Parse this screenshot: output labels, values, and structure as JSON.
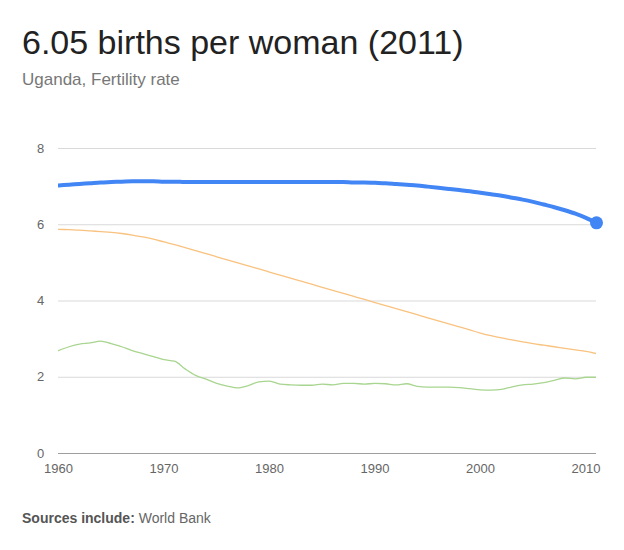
{
  "chart_data": {
    "type": "line",
    "title": "6.05 births per woman (2011)",
    "subtitle": "Uganda, Fertility rate",
    "caption_label": "Sources include:",
    "caption": "World Bank",
    "x": [
      1960,
      1961,
      1962,
      1963,
      1964,
      1965,
      1966,
      1967,
      1968,
      1969,
      1970,
      1971,
      1972,
      1973,
      1974,
      1975,
      1976,
      1977,
      1978,
      1979,
      1980,
      1981,
      1982,
      1983,
      1984,
      1985,
      1986,
      1987,
      1988,
      1989,
      1990,
      1991,
      1992,
      1993,
      1994,
      1995,
      1996,
      1997,
      1998,
      1999,
      2000,
      2001,
      2002,
      2003,
      2004,
      2005,
      2006,
      2007,
      2008,
      2009,
      2010,
      2011
    ],
    "series": [
      {
        "color": "#f9c27f",
        "values": [
          5.88,
          5.87,
          5.86,
          5.84,
          5.82,
          5.8,
          5.77,
          5.73,
          5.68,
          5.62,
          5.55,
          5.48,
          5.4,
          5.32,
          5.24,
          5.16,
          5.08,
          5.0,
          4.92,
          4.84,
          4.76,
          4.68,
          4.6,
          4.52,
          4.44,
          4.36,
          4.28,
          4.2,
          4.12,
          4.04,
          3.96,
          3.88,
          3.8,
          3.72,
          3.64,
          3.56,
          3.48,
          3.4,
          3.32,
          3.24,
          3.16,
          3.09,
          3.03,
          2.98,
          2.93,
          2.88,
          2.84,
          2.8,
          2.76,
          2.72,
          2.68,
          2.62
        ]
      },
      {
        "color": "#a8d58f",
        "values": [
          2.7,
          2.8,
          2.87,
          2.9,
          2.95,
          2.88,
          2.8,
          2.7,
          2.62,
          2.54,
          2.46,
          2.42,
          2.22,
          2.05,
          1.95,
          1.84,
          1.77,
          1.72,
          1.78,
          1.88,
          1.9,
          1.82,
          1.8,
          1.79,
          1.79,
          1.82,
          1.8,
          1.84,
          1.84,
          1.82,
          1.84,
          1.83,
          1.8,
          1.83,
          1.76,
          1.74,
          1.74,
          1.74,
          1.73,
          1.7,
          1.67,
          1.66,
          1.68,
          1.75,
          1.8,
          1.82,
          1.86,
          1.92,
          1.98,
          1.96,
          2.0,
          2.0
        ]
      },
      {
        "color": "#4285f4",
        "marker": "end",
        "values": [
          7.03,
          7.05,
          7.07,
          7.09,
          7.11,
          7.12,
          7.13,
          7.14,
          7.14,
          7.14,
          7.13,
          7.13,
          7.12,
          7.12,
          7.12,
          7.12,
          7.12,
          7.12,
          7.12,
          7.12,
          7.12,
          7.12,
          7.12,
          7.12,
          7.12,
          7.12,
          7.12,
          7.12,
          7.11,
          7.11,
          7.1,
          7.09,
          7.07,
          7.05,
          7.03,
          7.0,
          6.97,
          6.94,
          6.91,
          6.88,
          6.84,
          6.8,
          6.76,
          6.71,
          6.66,
          6.6,
          6.53,
          6.46,
          6.38,
          6.29,
          6.18,
          6.05
        ]
      }
    ],
    "xlim": [
      1960,
      2011
    ],
    "xticks": [
      1960,
      1970,
      1980,
      1990,
      2000,
      2010
    ],
    "ylim": [
      0,
      8
    ],
    "yticks": [
      0,
      2,
      4,
      6,
      8
    ],
    "grid": true
  }
}
